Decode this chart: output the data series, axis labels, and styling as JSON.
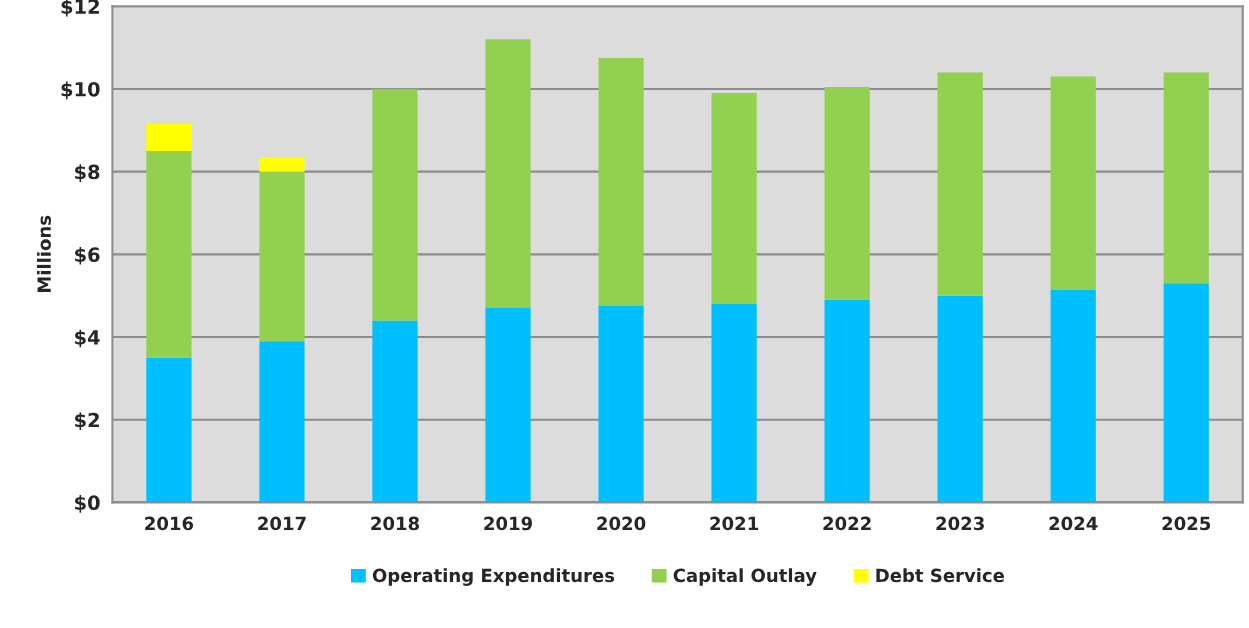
{
  "chart_data": {
    "type": "bar",
    "stacked": true,
    "ylabel": "Millions",
    "categories": [
      "2016",
      "2017",
      "2018",
      "2019",
      "2020",
      "2021",
      "2022",
      "2023",
      "2024",
      "2025"
    ],
    "series": [
      {
        "name": "Operating Expenditures",
        "color": "#00bfff",
        "values": [
          3.5,
          3.9,
          4.4,
          4.7,
          4.75,
          4.8,
          4.9,
          5.0,
          5.15,
          5.3
        ]
      },
      {
        "name": "Capital Outlay",
        "color": "#92d050",
        "values": [
          5.0,
          4.1,
          5.6,
          6.5,
          6.0,
          5.1,
          5.15,
          5.4,
          5.15,
          5.1
        ]
      },
      {
        "name": "Debt Service",
        "color": "#ffff00",
        "values": [
          0.65,
          0.35,
          0,
          0,
          0,
          0,
          0,
          0,
          0,
          0
        ]
      }
    ],
    "ylim": [
      0,
      12
    ],
    "yticks": [
      {
        "value": 0,
        "label": "$0"
      },
      {
        "value": 2,
        "label": "$2"
      },
      {
        "value": 4,
        "label": "$4"
      },
      {
        "value": 6,
        "label": "$6"
      },
      {
        "value": 8,
        "label": "$8"
      },
      {
        "value": 10,
        "label": "$10"
      },
      {
        "value": 12,
        "label": "$12"
      }
    ],
    "grid": "y",
    "legend": "bottom"
  }
}
